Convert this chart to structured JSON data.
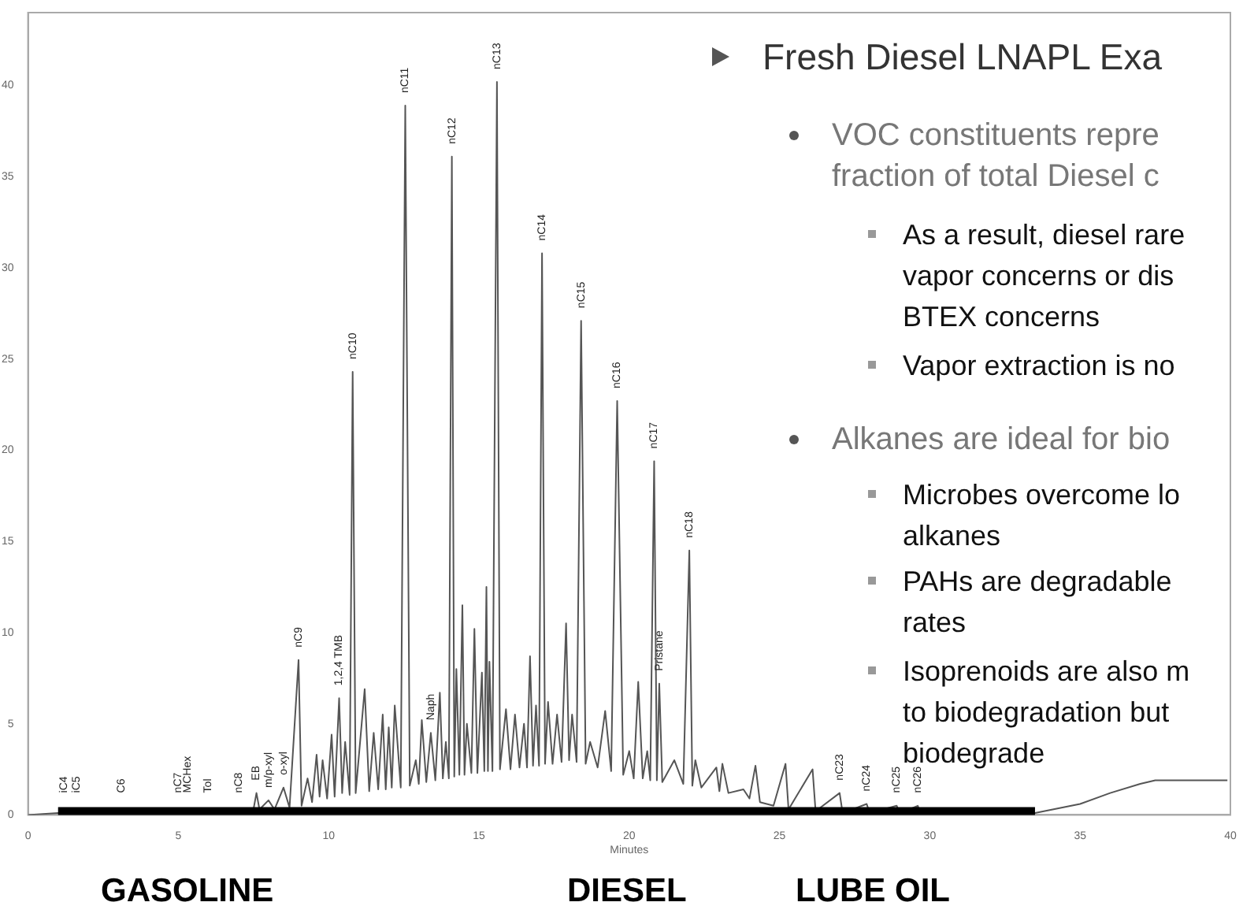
{
  "chart_data": {
    "type": "line",
    "title": "Fresh Diesel LNAPL Exa",
    "xlabel": "Minutes",
    "xlim": [
      0,
      40
    ],
    "xticks": [
      0,
      5,
      10,
      15,
      20,
      25,
      30,
      35,
      40
    ],
    "ylim": [
      0,
      44
    ],
    "yticks": [
      0,
      5,
      10,
      15,
      20,
      25,
      30,
      35,
      40
    ],
    "grid": false,
    "legend": false,
    "marker": "none",
    "line_style": "solid",
    "x": [
      0,
      1.0,
      5.0,
      7.0,
      7.5,
      7.6,
      7.7,
      8.0,
      8.2,
      8.5,
      8.7,
      9.0,
      9.1,
      9.3,
      9.45,
      9.6,
      9.7,
      9.8,
      9.95,
      10.1,
      10.2,
      10.35,
      10.45,
      10.55,
      10.7,
      10.8,
      10.9,
      11.2,
      11.35,
      11.5,
      11.65,
      11.8,
      11.9,
      12.0,
      12.1,
      12.2,
      12.4,
      12.55,
      12.7,
      12.9,
      13.0,
      13.1,
      13.25,
      13.4,
      13.55,
      13.7,
      13.8,
      13.9,
      14.0,
      14.1,
      14.18,
      14.25,
      14.35,
      14.45,
      14.52,
      14.6,
      14.75,
      14.85,
      14.95,
      15.1,
      15.18,
      15.25,
      15.3,
      15.35,
      15.45,
      15.6,
      15.7,
      15.9,
      16.05,
      16.2,
      16.35,
      16.5,
      16.6,
      16.7,
      16.8,
      16.9,
      17.0,
      17.1,
      17.2,
      17.3,
      17.45,
      17.6,
      17.75,
      17.9,
      18.0,
      18.1,
      18.25,
      18.4,
      18.55,
      18.7,
      18.95,
      19.2,
      19.4,
      19.6,
      19.8,
      20.0,
      20.15,
      20.3,
      20.45,
      20.6,
      20.7,
      20.83,
      20.92,
      21.0,
      21.1,
      21.5,
      21.8,
      22.0,
      22.1,
      22.2,
      22.4,
      22.9,
      23.0,
      23.1,
      23.3,
      23.8,
      24.0,
      24.2,
      24.35,
      24.8,
      25.2,
      25.3,
      26.1,
      26.2,
      27.0,
      27.1,
      27.9,
      28.0,
      28.9,
      29.0,
      29.6,
      29.7,
      33.5,
      35.0,
      36.0,
      37.0,
      37.5,
      39.9
    ],
    "series": [
      {
        "type": "line",
        "color": "#000000",
        "x": [
          1.0,
          33.5
        ],
        "values": [
          0,
          0
        ]
      },
      {
        "color": "#555555",
        "values": [
          0,
          0.1,
          0.1,
          0.2,
          0.3,
          1.2,
          0.3,
          0.8,
          0.3,
          1.5,
          0.4,
          8.5,
          0.5,
          2.0,
          0.7,
          3.3,
          1.0,
          3.0,
          0.9,
          4.4,
          1.0,
          6.4,
          1.2,
          4.0,
          1.1,
          24.3,
          1.2,
          6.9,
          1.3,
          4.5,
          1.4,
          5.5,
          1.4,
          4.8,
          1.5,
          6.0,
          1.5,
          38.9,
          1.6,
          3.0,
          1.7,
          5.2,
          1.8,
          4.5,
          1.9,
          6.7,
          2.0,
          4.0,
          2.0,
          36.1,
          2.1,
          8.0,
          2.2,
          11.5,
          2.2,
          5.0,
          2.3,
          10.2,
          2.3,
          7.8,
          2.4,
          12.5,
          2.4,
          8.4,
          2.4,
          40.2,
          2.5,
          5.8,
          2.5,
          5.5,
          2.6,
          5.0,
          2.6,
          8.7,
          2.7,
          6.0,
          2.7,
          30.8,
          2.8,
          6.2,
          2.8,
          5.5,
          2.9,
          10.5,
          3.0,
          5.5,
          2.9,
          27.1,
          2.8,
          4.0,
          2.6,
          5.7,
          2.4,
          22.7,
          2.2,
          3.5,
          2.0,
          7.3,
          2.0,
          3.5,
          1.9,
          19.4,
          1.9,
          7.2,
          1.8,
          3.0,
          1.7,
          14.5,
          1.6,
          3.0,
          1.5,
          2.6,
          1.3,
          2.8,
          1.2,
          1.4,
          0.9,
          2.7,
          0.7,
          0.5,
          2.8,
          0.3,
          2.5,
          0.2,
          1.2,
          0.1,
          0.6,
          0.1,
          0.5,
          0.1,
          0.5,
          0.1,
          0.1,
          0.6,
          1.2,
          1.7,
          1.9,
          1.9
        ]
      }
    ],
    "annotations": [
      {
        "text": "iC4",
        "x": 1.2,
        "y": 0.1
      },
      {
        "text": "iC5",
        "x": 1.6,
        "y": 0.1
      },
      {
        "text": "C6",
        "x": 3.1,
        "y": 0.1
      },
      {
        "text": "nC7",
        "x": 5.0,
        "y": 0.1
      },
      {
        "text": "MCHex",
        "x": 5.3,
        "y": 0.1
      },
      {
        "text": "Tol",
        "x": 6.0,
        "y": 0.2
      },
      {
        "text": "nC8",
        "x": 7.0,
        "y": 0.5
      },
      {
        "text": "EB",
        "x": 7.6,
        "y": 1.2
      },
      {
        "text": "m/p-xyl",
        "x": 8.0,
        "y": 0.8
      },
      {
        "text": "o-xyl",
        "x": 8.5,
        "y": 1.5
      },
      {
        "text": "nC9",
        "x": 9.0,
        "y": 8.5
      },
      {
        "text": "1,2,4 TMB",
        "x": 10.35,
        "y": 6.4
      },
      {
        "text": "nC10",
        "x": 10.8,
        "y": 24.3
      },
      {
        "text": "nC11",
        "x": 12.55,
        "y": 38.9
      },
      {
        "text": "Naph",
        "x": 13.4,
        "y": 4.5
      },
      {
        "text": "nC12",
        "x": 14.1,
        "y": 36.1
      },
      {
        "text": "nC13",
        "x": 15.6,
        "y": 40.2
      },
      {
        "text": "nC14",
        "x": 17.1,
        "y": 30.8
      },
      {
        "text": "nC15",
        "x": 18.4,
        "y": 27.1
      },
      {
        "text": "nC16",
        "x": 19.6,
        "y": 22.7
      },
      {
        "text": "nC17",
        "x": 20.83,
        "y": 19.4
      },
      {
        "text": "Pristane",
        "x": 21.0,
        "y": 7.2
      },
      {
        "text": "nC18",
        "x": 22.0,
        "y": 14.5
      },
      {
        "text": "nC23",
        "x": 27.0,
        "y": 1.2
      },
      {
        "text": "nC24",
        "x": 27.9,
        "y": 0.6
      },
      {
        "text": "nC25",
        "x": 28.9,
        "y": 0.5
      },
      {
        "text": "nC26",
        "x": 29.6,
        "y": 0.5
      },
      "VOC constituents repre\nfraction of total Diesel c",
      "As a result, diesel rare\nvapor concerns or dis\nBTEX concerns",
      "Vapor extraction is no",
      "Alkanes are ideal for bio",
      "Microbes overcome lo\nalkanes",
      "PAHs are degradable\nrates",
      "Isoprenoids are also m\nto biodegradation but\nbiodegrade",
      "GASOLINE",
      "DIESEL",
      "LUBE OIL"
    ]
  }
}
